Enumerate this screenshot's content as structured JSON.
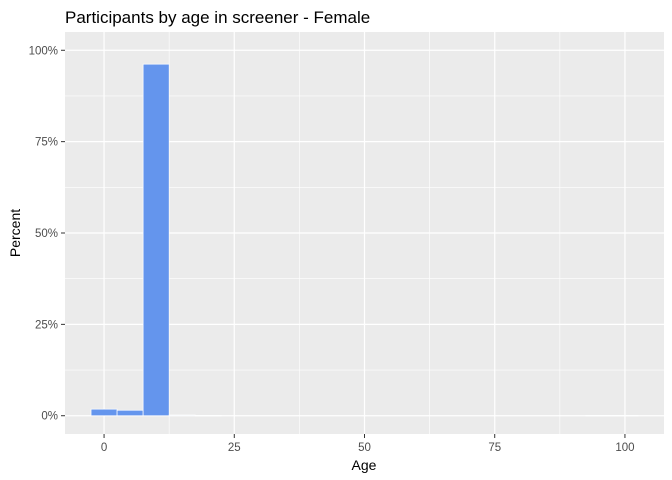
{
  "chart_data": {
    "type": "bar",
    "title": "Participants by age in screener  - Female",
    "xlabel": "Age",
    "ylabel": "Percent",
    "xlim": [
      -7.5,
      107.5
    ],
    "ylim": [
      -0.05,
      1.05
    ],
    "x_ticks": [
      0,
      25,
      50,
      75,
      100
    ],
    "x_tick_labels": [
      "0",
      "25",
      "50",
      "75",
      "100"
    ],
    "y_ticks": [
      0,
      0.25,
      0.5,
      0.75,
      1.0
    ],
    "y_tick_labels": [
      "0%",
      "25%",
      "50%",
      "75%",
      "100%"
    ],
    "bin_width": 5,
    "bars": [
      {
        "x": 0,
        "value": 0.018
      },
      {
        "x": 5,
        "value": 0.015
      },
      {
        "x": 10,
        "value": 0.962
      },
      {
        "x": 15,
        "value": 0.002
      },
      {
        "x": 20,
        "value": 0.001
      },
      {
        "x": 95,
        "value": 0.001
      },
      {
        "x": 100,
        "value": 0.001
      }
    ],
    "bar_color": "#6495ED",
    "panel_color": "#EBEBEB",
    "grid_color": "#FFFFFF",
    "grid": true,
    "legend": "none"
  }
}
